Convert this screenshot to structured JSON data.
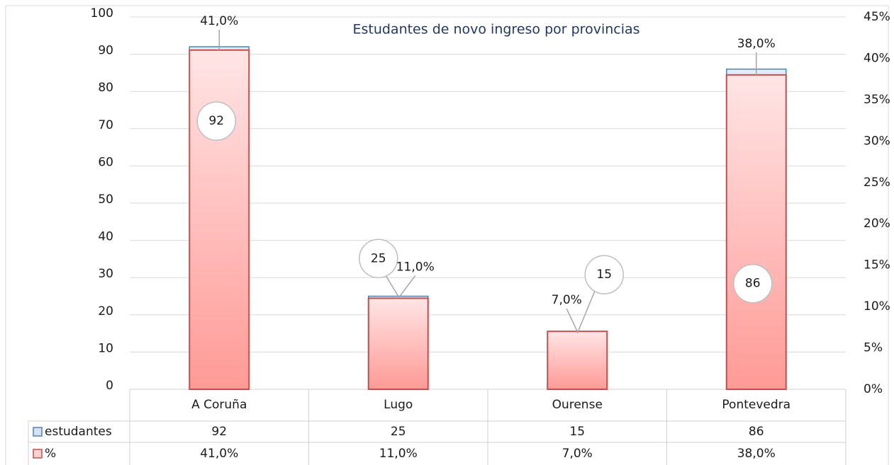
{
  "chart_data": {
    "type": "bar",
    "title": "Estudantes de novo ingreso por provincias",
    "categories": [
      "A Coruña",
      "Lugo",
      "Ourense",
      "Pontevedra"
    ],
    "series": [
      {
        "name": "estudantes",
        "color": "#4f81bd",
        "values": [
          92,
          25,
          15,
          86
        ]
      },
      {
        "name": "%",
        "color": "#c0504d",
        "axis": "y2",
        "values": [
          41,
          11,
          7,
          38
        ],
        "value_labels": [
          "41,0%",
          "11,0%",
          "7,0%",
          "38,0%"
        ]
      }
    ],
    "ylim": [
      0,
      100
    ],
    "yticks": [
      0,
      10,
      20,
      30,
      40,
      50,
      60,
      70,
      80,
      90,
      100
    ],
    "y2lim": [
      0,
      45
    ],
    "y2ticks": [
      {
        "value": 0,
        "label": "0%"
      },
      {
        "value": 5,
        "label": "5%"
      },
      {
        "value": 10,
        "label": "10%"
      },
      {
        "value": 15,
        "label": "15%"
      },
      {
        "value": 20,
        "label": "20%"
      },
      {
        "value": 25,
        "label": "25%"
      },
      {
        "value": 30,
        "label": "30%"
      },
      {
        "value": 35,
        "label": "35%"
      },
      {
        "value": 40,
        "label": "40%"
      },
      {
        "value": 45,
        "label": "45%"
      }
    ],
    "grid": true,
    "data_table": true
  }
}
